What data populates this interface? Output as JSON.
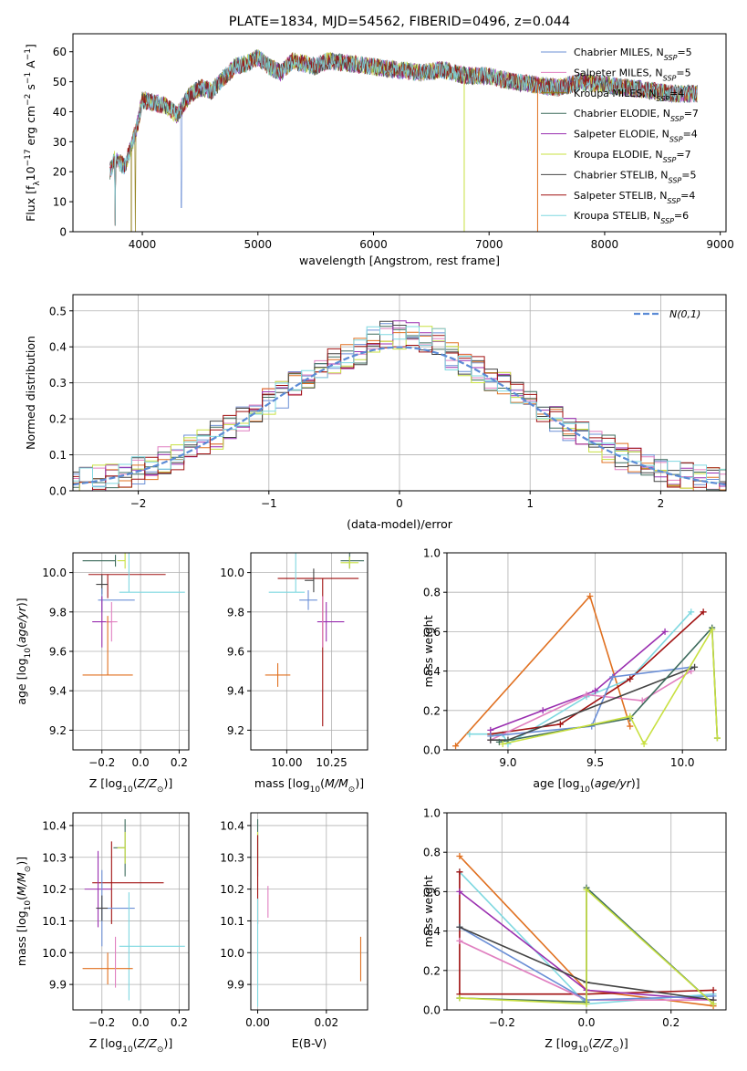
{
  "chart_data": [
    {
      "id": "spectrum",
      "type": "line",
      "title": "PLATE=1834, MJD=54562, FIBERID=0496, z=0.044",
      "xlabel": "wavelength [Angstrom, rest frame]",
      "ylabel": "Flux [f_λ 10^-17 erg cm^-2 s^-1 A^-1]",
      "xlim": [
        3400,
        9050
      ],
      "ylim": [
        0,
        66
      ],
      "xticks": [
        4000,
        5000,
        6000,
        7000,
        8000,
        9000
      ],
      "yticks": [
        0,
        10,
        20,
        30,
        40,
        50,
        60
      ],
      "grid": false,
      "legend_position": "top-right",
      "continuum_points": [
        [
          3720,
          20
        ],
        [
          3760,
          24
        ],
        [
          3850,
          22
        ],
        [
          3900,
          28
        ],
        [
          3960,
          36
        ],
        [
          4000,
          44
        ],
        [
          4100,
          43
        ],
        [
          4200,
          42
        ],
        [
          4300,
          39
        ],
        [
          4400,
          45
        ],
        [
          4500,
          48
        ],
        [
          4600,
          47
        ],
        [
          4700,
          51
        ],
        [
          4800,
          55
        ],
        [
          4900,
          56
        ],
        [
          5000,
          58
        ],
        [
          5100,
          55
        ],
        [
          5200,
          53
        ],
        [
          5300,
          57
        ],
        [
          5400,
          56
        ],
        [
          5500,
          55
        ],
        [
          5600,
          57
        ],
        [
          5800,
          56
        ],
        [
          6000,
          55
        ],
        [
          6200,
          54
        ],
        [
          6400,
          53
        ],
        [
          6600,
          54
        ],
        [
          6800,
          52
        ],
        [
          7000,
          52
        ],
        [
          7200,
          50
        ],
        [
          7400,
          49
        ],
        [
          7600,
          48
        ],
        [
          7800,
          50
        ],
        [
          8000,
          49
        ],
        [
          8200,
          48
        ],
        [
          8400,
          47
        ],
        [
          8600,
          46
        ],
        [
          8800,
          46
        ]
      ],
      "series": [
        {
          "name": "Chabrier MILES, N_SSP=5",
          "color": "#6b8fd6"
        },
        {
          "name": "Salpeter MILES, N_SSP=5",
          "color": "#e07fc0"
        },
        {
          "name": "Kroupa MILES, N_SSP=4",
          "color": "#8c7a10"
        },
        {
          "name": "Chabrier ELODIE, N_SSP=7",
          "color": "#3d6b5c"
        },
        {
          "name": "Salpeter ELODIE, N_SSP=4",
          "color": "#9a2fb0"
        },
        {
          "name": "Kroupa ELODIE, N_SSP=7",
          "color": "#c8e040"
        },
        {
          "name": "Chabrier STELIB, N_SSP=5",
          "color": "#444444"
        },
        {
          "name": "Salpeter STELIB, N_SSP=4",
          "color": "#a01010"
        },
        {
          "name": "Kroupa STELIB, N_SSP=6",
          "color": "#7fd8e0"
        }
      ]
    },
    {
      "id": "residuals",
      "type": "line",
      "xlabel": "(data-model)/error",
      "ylabel": "Normed distribution",
      "xlim": [
        -2.5,
        2.5
      ],
      "ylim": [
        0,
        0.545
      ],
      "xticks": [
        -2,
        -1,
        0,
        1,
        2
      ],
      "yticks": [
        0.0,
        0.1,
        0.2,
        0.3,
        0.4,
        0.5
      ],
      "grid": true,
      "legend_position": "top-right",
      "gaussian_label": "N(0,1)",
      "gaussian_color": "#5b8bd6",
      "hist_colors": [
        "#6b8fd6",
        "#e07fc0",
        "#e07020",
        "#3d6b5c",
        "#9a2fb0",
        "#c8e040",
        "#444444",
        "#a01010",
        "#7fd8e0"
      ]
    },
    {
      "id": "z_age",
      "type": "scatter",
      "xlabel": "Z [log10(Z/Z⊙)]",
      "ylabel": "age [log10(age/yr)]",
      "xlim": [
        -0.35,
        0.25
      ],
      "ylim": [
        9.1,
        10.1
      ],
      "xticks": [
        -0.2,
        0.0,
        0.2
      ],
      "yticks": [
        9.2,
        9.4,
        9.6,
        9.8,
        10.0
      ],
      "grid": true,
      "points": [
        {
          "x": -0.13,
          "y": 10.06,
          "xerr": [
            0.17,
            0.0
          ],
          "yerr": [
            0.03,
            0.03
          ],
          "color": "#3d6b5c"
        },
        {
          "x": -0.08,
          "y": 10.06,
          "xerr": [
            0.04,
            0.0
          ],
          "yerr": [
            0.04,
            0.04
          ],
          "color": "#c8e040"
        },
        {
          "x": -0.17,
          "y": 9.99,
          "xerr": [
            0.1,
            0.3
          ],
          "yerr": [
            0.12,
            0.0
          ],
          "color": "#a01010"
        },
        {
          "x": -0.2,
          "y": 9.94,
          "xerr": [
            0.03,
            0.03
          ],
          "yerr": [
            0.05,
            0.05
          ],
          "color": "#444444"
        },
        {
          "x": -0.06,
          "y": 9.9,
          "xerr": [
            0.05,
            0.29
          ],
          "yerr": [
            0.0,
            0.75
          ],
          "color": "#7fd8e0"
        },
        {
          "x": -0.2,
          "y": 9.86,
          "xerr": [
            0.02,
            0.17
          ],
          "yerr": [
            0.06,
            0.06
          ],
          "color": "#6b8fd6"
        },
        {
          "x": -0.2,
          "y": 9.75,
          "xerr": [
            0.05,
            0.05
          ],
          "yerr": [
            0.13,
            0.13
          ],
          "color": "#9a2fb0"
        },
        {
          "x": -0.15,
          "y": 9.75,
          "xerr": [
            0.03,
            0.03
          ],
          "yerr": [
            0.1,
            0.1
          ],
          "color": "#e07fc0"
        },
        {
          "x": -0.17,
          "y": 9.48,
          "xerr": [
            0.13,
            0.13
          ],
          "yerr": [
            0.0,
            0.3
          ],
          "color": "#e07020"
        }
      ]
    },
    {
      "id": "mass_age",
      "type": "scatter",
      "xlabel": "mass [log10(M/M⊙)]",
      "ylabel": "",
      "xlim": [
        9.8,
        10.45
      ],
      "ylim": [
        9.1,
        10.1
      ],
      "xticks": [
        10.0,
        10.25
      ],
      "yticks": [
        9.2,
        9.4,
        9.6,
        9.8,
        10.0
      ],
      "grid": true,
      "points": [
        {
          "x": 10.35,
          "y": 10.06,
          "xerr": [
            0.05,
            0.08
          ],
          "yerr": [
            0.04,
            0.04
          ],
          "color": "#3d6b5c"
        },
        {
          "x": 10.35,
          "y": 10.05,
          "xerr": [
            0.05,
            0.05
          ],
          "yerr": [
            0.03,
            0.03
          ],
          "color": "#c8e040"
        },
        {
          "x": 10.2,
          "y": 9.97,
          "xerr": [
            0.25,
            0.2
          ],
          "yerr": [
            0.75,
            0.0
          ],
          "color": "#a01010"
        },
        {
          "x": 10.15,
          "y": 9.96,
          "xerr": [
            0.05,
            0.0
          ],
          "yerr": [
            0.06,
            0.06
          ],
          "color": "#444444"
        },
        {
          "x": 10.05,
          "y": 9.9,
          "xerr": [
            0.15,
            0.05
          ],
          "yerr": [
            0.0,
            0.75
          ],
          "color": "#7fd8e0"
        },
        {
          "x": 10.12,
          "y": 9.86,
          "xerr": [
            0.05,
            0.05
          ],
          "yerr": [
            0.05,
            0.05
          ],
          "color": "#6b8fd6"
        },
        {
          "x": 10.22,
          "y": 9.75,
          "xerr": [
            0.05,
            0.1
          ],
          "yerr": [
            0.1,
            0.1
          ],
          "color": "#9a2fb0"
        },
        {
          "x": 10.2,
          "y": 9.75,
          "xerr": [
            0.0,
            0.0
          ],
          "yerr": [
            0.13,
            0.13
          ],
          "color": "#e07fc0"
        },
        {
          "x": 9.95,
          "y": 9.48,
          "xerr": [
            0.07,
            0.07
          ],
          "yerr": [
            0.06,
            0.06
          ],
          "color": "#e07020"
        }
      ]
    },
    {
      "id": "age_weight",
      "type": "line",
      "xlabel": "age [log10(age/yr)]",
      "ylabel": "mass weight",
      "xlim": [
        8.65,
        10.25
      ],
      "ylim": [
        0,
        1.0
      ],
      "xticks": [
        9.0,
        9.5,
        10.0
      ],
      "yticks": [
        0.0,
        0.2,
        0.4,
        0.6,
        0.8,
        1.0
      ],
      "grid": true,
      "series": [
        {
          "color": "#e07020",
          "x": [
            8.7,
            9.47,
            9.7
          ],
          "y": [
            0.02,
            0.78,
            0.12
          ]
        },
        {
          "color": "#7fd8e0",
          "x": [
            8.78,
            8.97,
            9.0,
            9.45,
            9.7,
            10.05
          ],
          "y": [
            0.08,
            0.08,
            0.03,
            0.27,
            0.36,
            0.7
          ]
        },
        {
          "color": "#a01010",
          "x": [
            8.9,
            9.3,
            9.7,
            10.12
          ],
          "y": [
            0.08,
            0.13,
            0.36,
            0.7
          ]
        },
        {
          "color": "#9a2fb0",
          "x": [
            8.9,
            9.2,
            9.5,
            9.9
          ],
          "y": [
            0.1,
            0.2,
            0.3,
            0.6
          ]
        },
        {
          "color": "#e07fc0",
          "x": [
            8.9,
            9.45,
            9.77,
            10.05
          ],
          "y": [
            0.05,
            0.28,
            0.25,
            0.4
          ]
        },
        {
          "color": "#6b8fd6",
          "x": [
            8.9,
            9.48,
            9.6,
            10.05
          ],
          "y": [
            0.07,
            0.12,
            0.37,
            0.42
          ]
        },
        {
          "color": "#444444",
          "x": [
            8.9,
            9.0,
            10.07
          ],
          "y": [
            0.05,
            0.05,
            0.42
          ]
        },
        {
          "color": "#3d6b5c",
          "x": [
            8.95,
            9.7,
            10.17,
            10.2
          ],
          "y": [
            0.04,
            0.16,
            0.62,
            0.06
          ]
        },
        {
          "color": "#c8e040",
          "x": [
            8.97,
            9.7,
            9.78,
            10.17,
            10.2
          ],
          "y": [
            0.03,
            0.17,
            0.03,
            0.61,
            0.06
          ]
        }
      ]
    },
    {
      "id": "z_mass",
      "type": "scatter",
      "xlabel": "Z [log10(Z/Z⊙)]",
      "ylabel": "mass [log10(M/M⊙)]",
      "xlim": [
        -0.35,
        0.25
      ],
      "ylim": [
        9.82,
        10.44
      ],
      "xticks": [
        -0.2,
        0.0,
        0.2
      ],
      "yticks": [
        9.9,
        10.0,
        10.1,
        10.2,
        10.3,
        10.4
      ],
      "grid": true,
      "points": [
        {
          "x": -0.08,
          "y": 10.33,
          "xerr": [
            0.06,
            0.0
          ],
          "yerr": [
            0.09,
            0.09
          ],
          "color": "#3d6b5c"
        },
        {
          "x": -0.08,
          "y": 10.33,
          "xerr": [
            0.04,
            0.0
          ],
          "yerr": [
            0.05,
            0.05
          ],
          "color": "#c8e040"
        },
        {
          "x": -0.15,
          "y": 10.22,
          "xerr": [
            0.1,
            0.27
          ],
          "yerr": [
            0.13,
            0.13
          ],
          "color": "#a01010"
        },
        {
          "x": -0.22,
          "y": 10.2,
          "xerr": [
            0.07,
            0.07
          ],
          "yerr": [
            0.12,
            0.12
          ],
          "color": "#9a2fb0"
        },
        {
          "x": -0.2,
          "y": 10.14,
          "xerr": [
            0.02,
            0.17
          ],
          "yerr": [
            0.12,
            0.12
          ],
          "color": "#6b8fd6"
        },
        {
          "x": -0.2,
          "y": 10.14,
          "xerr": [
            0.03,
            0.03
          ],
          "yerr": [
            0.04,
            0.04
          ],
          "color": "#444444"
        },
        {
          "x": -0.06,
          "y": 10.02,
          "xerr": [
            0.05,
            0.29
          ],
          "yerr": [
            0.17,
            0.17
          ],
          "color": "#7fd8e0"
        },
        {
          "x": -0.17,
          "y": 9.95,
          "xerr": [
            0.13,
            0.13
          ],
          "yerr": [
            0.05,
            0.05
          ],
          "color": "#e07020"
        },
        {
          "x": -0.13,
          "y": 9.97,
          "xerr": [
            0.0,
            0.0
          ],
          "yerr": [
            0.08,
            0.08
          ],
          "color": "#e07fc0"
        }
      ]
    },
    {
      "id": "ebv_mass",
      "type": "scatter",
      "xlabel": "E(B-V)",
      "ylabel": "",
      "xlim": [
        -0.002,
        0.032
      ],
      "ylim": [
        9.82,
        10.44
      ],
      "xticks": [
        0.0,
        0.02
      ],
      "yticks": [
        9.9,
        10.0,
        10.1,
        10.2,
        10.3,
        10.4
      ],
      "grid": true,
      "points": [
        {
          "x": 0.0,
          "y": 10.33,
          "xerr": [
            0,
            0
          ],
          "yerr": [
            0.09,
            0.09
          ],
          "color": "#3d6b5c"
        },
        {
          "x": 0.0,
          "y": 10.33,
          "xerr": [
            0,
            0
          ],
          "yerr": [
            0.05,
            0.05
          ],
          "color": "#c8e040"
        },
        {
          "x": 0.0,
          "y": 10.23,
          "xerr": [
            0,
            0
          ],
          "yerr": [
            0.14,
            0.14
          ],
          "color": "#a01010"
        },
        {
          "x": 0.0,
          "y": 10.0,
          "xerr": [
            0,
            0
          ],
          "yerr": [
            0.17,
            0.17
          ],
          "color": "#7fd8e0"
        },
        {
          "x": 0.003,
          "y": 10.16,
          "xerr": [
            0,
            0
          ],
          "yerr": [
            0.05,
            0.05
          ],
          "color": "#e07fc0"
        },
        {
          "x": 0.03,
          "y": 9.98,
          "xerr": [
            0,
            0
          ],
          "yerr": [
            0.07,
            0.07
          ],
          "color": "#e07020"
        }
      ]
    },
    {
      "id": "z_weight",
      "type": "line",
      "xlabel": "Z [log10(Z/Z⊙)]",
      "ylabel": "mass weight",
      "xlim": [
        -0.33,
        0.33
      ],
      "ylim": [
        0,
        1.0
      ],
      "xticks": [
        -0.2,
        0.0,
        0.2
      ],
      "yticks": [
        0.0,
        0.2,
        0.4,
        0.6,
        0.8,
        1.0
      ],
      "grid": true,
      "series": [
        {
          "color": "#e07020",
          "x": [
            -0.3,
            0.0,
            0.3
          ],
          "y": [
            0.78,
            0.1,
            0.02
          ]
        },
        {
          "color": "#7fd8e0",
          "x": [
            -0.3,
            0.0,
            0.3
          ],
          "y": [
            0.7,
            0.03,
            0.08
          ]
        },
        {
          "color": "#a01010",
          "x": [
            -0.3,
            -0.3,
            0.0,
            0.3
          ],
          "y": [
            0.7,
            0.08,
            0.08,
            0.1
          ]
        },
        {
          "color": "#9a2fb0",
          "x": [
            -0.3,
            0.0,
            0.3
          ],
          "y": [
            0.6,
            0.1,
            0.05
          ]
        },
        {
          "color": "#e07fc0",
          "x": [
            -0.3,
            0.0,
            0.3
          ],
          "y": [
            0.35,
            0.05,
            0.05
          ]
        },
        {
          "color": "#6b8fd6",
          "x": [
            -0.3,
            0.0,
            0.3
          ],
          "y": [
            0.42,
            0.05,
            0.07
          ]
        },
        {
          "color": "#444444",
          "x": [
            -0.3,
            0.0,
            0.3
          ],
          "y": [
            0.42,
            0.14,
            0.05
          ]
        },
        {
          "color": "#3d6b5c",
          "x": [
            -0.3,
            0.0,
            0.0,
            0.3
          ],
          "y": [
            0.06,
            0.04,
            0.62,
            0.03
          ]
        },
        {
          "color": "#c8e040",
          "x": [
            -0.3,
            0.0,
            0.0,
            0.3
          ],
          "y": [
            0.06,
            0.03,
            0.61,
            0.03
          ]
        }
      ]
    }
  ]
}
